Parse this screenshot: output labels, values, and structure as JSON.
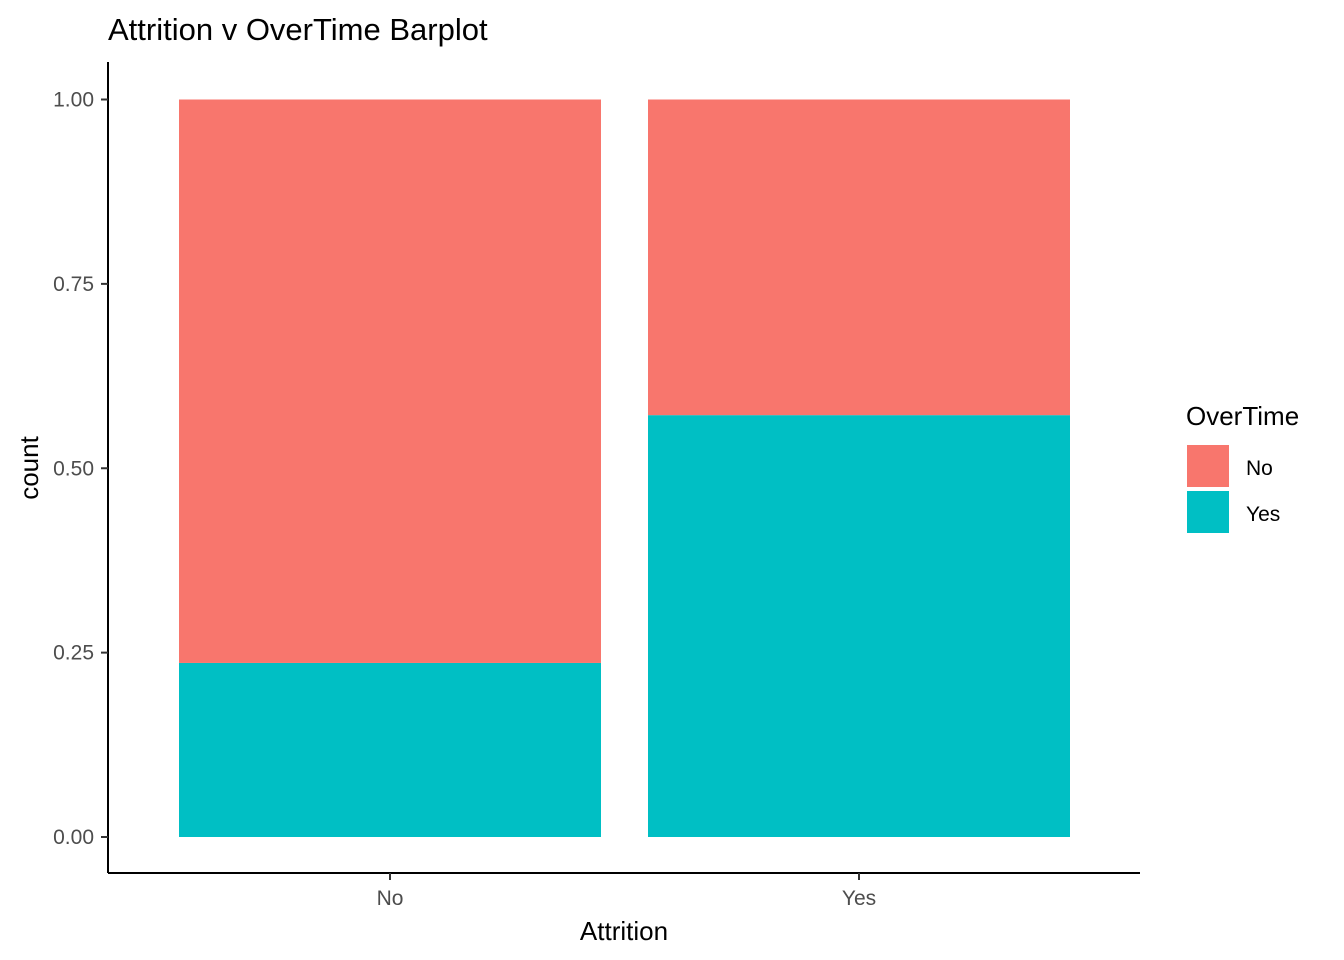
{
  "chart_data": {
    "type": "bar",
    "stacked": true,
    "title": "Attrition v OverTime Barplot",
    "xlabel": "Attrition",
    "ylabel": "count",
    "categories": [
      "No",
      "Yes"
    ],
    "ylim": [
      0,
      1
    ],
    "yticks": [
      "0.00",
      "0.25",
      "0.50",
      "0.75",
      "1.00"
    ],
    "ytick_values": [
      0,
      0.25,
      0.5,
      0.75,
      1.0
    ],
    "series": [
      {
        "name": "No",
        "color": "#F8766D",
        "values": [
          0.764,
          0.428
        ]
      },
      {
        "name": "Yes",
        "color": "#00BFC4",
        "values": [
          0.236,
          0.572
        ]
      }
    ],
    "stack_order": [
      "Yes",
      "No"
    ],
    "legend": {
      "title": "OverTime",
      "position": "right"
    },
    "grid": false
  }
}
